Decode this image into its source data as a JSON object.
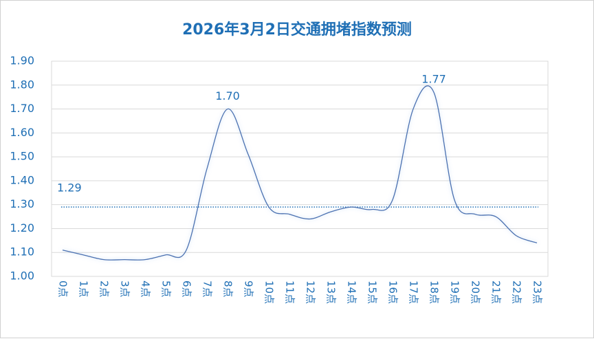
{
  "chart_data": {
    "type": "line",
    "title": "2026年3月2日交通拥堵指数预测",
    "categories": [
      "0点",
      "1点",
      "2点",
      "3点",
      "4点",
      "5点",
      "6点",
      "7点",
      "8点",
      "9点",
      "10点",
      "11点",
      "12点",
      "13点",
      "14点",
      "15点",
      "16点",
      "17点",
      "18点",
      "19点",
      "20点",
      "21点",
      "22点",
      "23点"
    ],
    "series": [
      {
        "name": "交通拥堵指数",
        "color": "#4a6fb0",
        "values": [
          1.11,
          1.09,
          1.07,
          1.07,
          1.07,
          1.09,
          1.11,
          1.45,
          1.7,
          1.51,
          1.29,
          1.26,
          1.24,
          1.27,
          1.29,
          1.28,
          1.32,
          1.7,
          1.77,
          1.32,
          1.26,
          1.25,
          1.17,
          1.14
        ],
        "value_labels": [
          null,
          null,
          null,
          null,
          null,
          null,
          null,
          null,
          "1.70",
          null,
          null,
          null,
          null,
          null,
          null,
          null,
          null,
          null,
          "1.77",
          null,
          null,
          null,
          null,
          null
        ]
      }
    ],
    "reference_line": {
      "value": 1.29,
      "label": "1.29",
      "color": "#1f6fb5"
    },
    "ylim": [
      1.0,
      1.9
    ],
    "yticks": [
      {
        "value": 1.0,
        "label": "1.00"
      },
      {
        "value": 1.1,
        "label": "1.10"
      },
      {
        "value": 1.2,
        "label": "1.20"
      },
      {
        "value": 1.3,
        "label": "1.30"
      },
      {
        "value": 1.4,
        "label": "1.40"
      },
      {
        "value": 1.5,
        "label": "1.50"
      },
      {
        "value": 1.6,
        "label": "1.60"
      },
      {
        "value": 1.7,
        "label": "1.70"
      },
      {
        "value": 1.8,
        "label": "1.80"
      },
      {
        "value": 1.9,
        "label": "1.90"
      }
    ],
    "grid": true
  }
}
